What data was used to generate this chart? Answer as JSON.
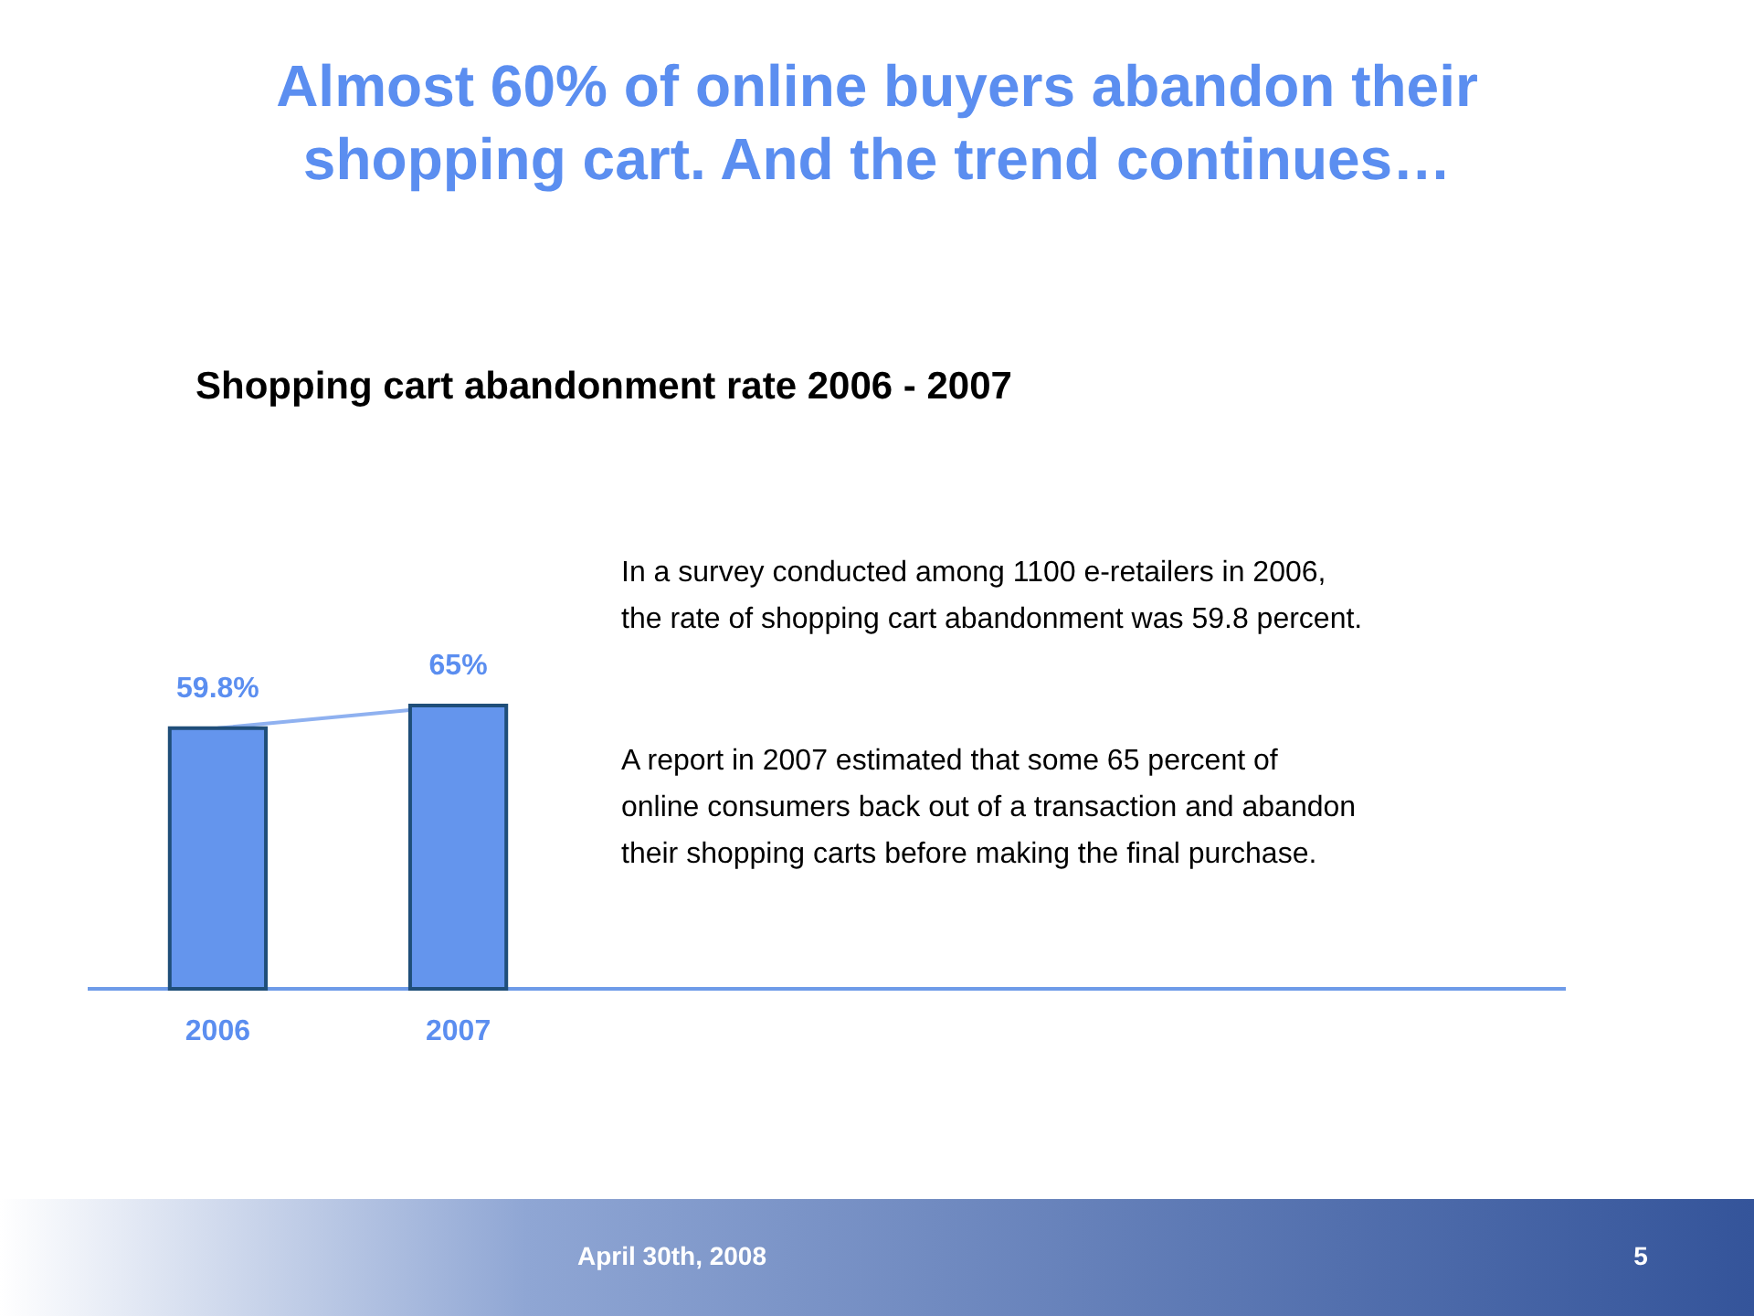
{
  "chart_data": {
    "type": "bar",
    "title": "Almost 60% of online buyers abandon their shopping cart. And the trend continues…",
    "subtitle": "Shopping cart abandonment rate 2006 - 2007",
    "categories": [
      "2006",
      "2007"
    ],
    "series": [
      {
        "type": "line",
        "color": "#8fb1f0",
        "values": [
          59.8,
          65
        ],
        "marker": "none"
      },
      {
        "color": "#6495ed",
        "values": [
          59.8,
          65
        ],
        "value_labels": [
          "59.8%",
          "65%"
        ]
      }
    ],
    "annotations": [
      "In a survey conducted among 1100 e-retailers in 2006, the rate of shopping cart abandonment was 59.8 percent.",
      "A report in 2007 estimated that some 65 percent of online consumers back out of a transaction and abandon their shopping carts before making the final purchase.",
      "April 30th, 2008",
      "5"
    ]
  }
}
